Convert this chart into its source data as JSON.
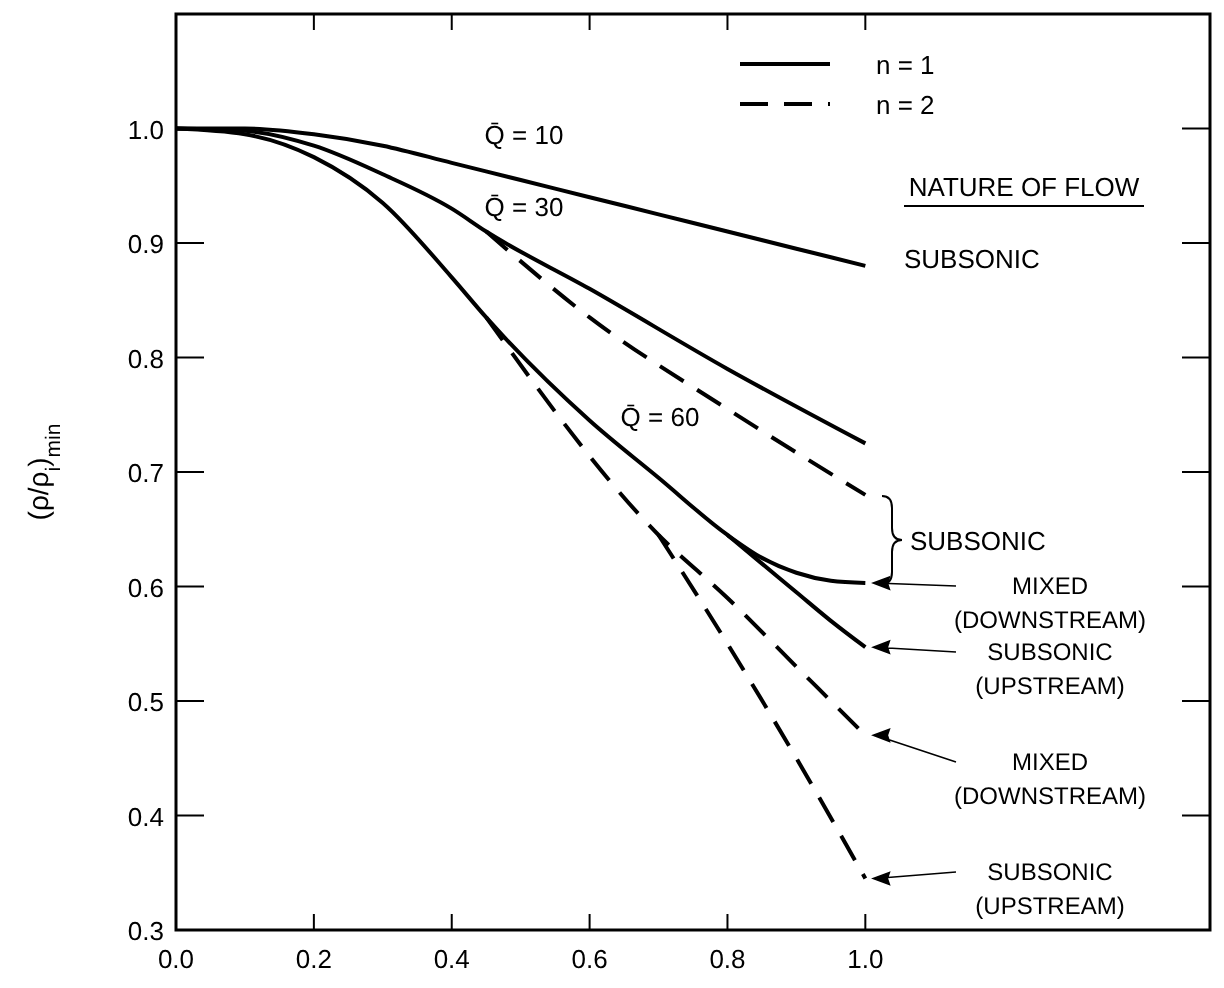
{
  "chart_data": {
    "type": "line",
    "ylabel": "(ρ/ρ$_{i}$)$_{min}$",
    "xlim": [
      0,
      1.5
    ],
    "ylim": [
      0.3,
      1.1
    ],
    "xticks": [
      {
        "value": 0,
        "label": "0.0"
      },
      0.2,
      0.4,
      0.6,
      0.8,
      {
        "value": 1,
        "label": "1.0"
      }
    ],
    "yticks": [
      0.3,
      0.4,
      0.5,
      0.6,
      0.7,
      0.8,
      0.9,
      {
        "value": 1,
        "label": "1.0"
      }
    ],
    "grid": false,
    "legend": "top right",
    "marker": "none",
    "series": [
      {
        "name": "n = 1",
        "color": "#000000",
        "line_style": "solid",
        "x": [
          0,
          0.1,
          0.2,
          0.3,
          0.4,
          0.5,
          0.6,
          0.7,
          0.8,
          0.9,
          1.0
        ],
        "values": [
          1,
          1,
          0.995,
          0.985,
          0.97,
          0.955,
          0.94,
          0.925,
          0.91,
          0.895,
          0.88
        ]
      },
      {
        "color": "#000000",
        "line_style": "solid",
        "x": [
          0,
          0.1,
          0.2,
          0.3,
          0.4,
          0.45,
          0.6,
          0.8,
          1.0
        ],
        "values": [
          1,
          0.998,
          0.985,
          0.96,
          0.93,
          0.91,
          0.86,
          0.79,
          0.725
        ]
      },
      {
        "name": "n = 2",
        "color": "#000000",
        "line_style": "dashed",
        "x": [
          0.45,
          0.6,
          0.8,
          1.0
        ],
        "values": [
          0.91,
          0.835,
          0.755,
          0.68
        ]
      },
      {
        "color": "#000000",
        "line_style": "solid",
        "x": [
          0,
          0.1,
          0.2,
          0.3,
          0.4,
          0.45,
          0.6,
          0.7,
          0.8,
          0.85,
          0.9,
          0.95,
          1.0
        ],
        "values": [
          1,
          0.995,
          0.975,
          0.935,
          0.87,
          0.835,
          0.745,
          0.695,
          0.645,
          0.625,
          0.612,
          0.605,
          0.603
        ]
      },
      {
        "color": "#000000",
        "line_style": "solid",
        "x": [
          0.8,
          0.85,
          0.9,
          0.95,
          1.0
        ],
        "values": [
          0.645,
          0.62,
          0.595,
          0.57,
          0.547
        ]
      },
      {
        "color": "#000000",
        "line_style": "dashed",
        "x": [
          0.45,
          0.7,
          0.8,
          0.9,
          1.0
        ],
        "values": [
          0.835,
          0.645,
          0.59,
          0.53,
          0.47
        ]
      },
      {
        "color": "#000000",
        "line_style": "dashed",
        "x": [
          0.7,
          0.8,
          0.9,
          1.0
        ],
        "values": [
          0.645,
          0.55,
          0.45,
          0.345
        ]
      }
    ],
    "annotations": [
      "Q̄ = 10",
      "Q̄ = 30",
      "Q̄ = 60",
      "NATURE OF FLOW",
      "SUBSONIC",
      "SUBSONIC",
      "MIXED\n(DOWNSTREAM)",
      "SUBSONIC\n(UPSTREAM)",
      "MIXED\n(DOWNSTREAM)",
      "SUBSONIC\n(UPSTREAM)"
    ]
  }
}
